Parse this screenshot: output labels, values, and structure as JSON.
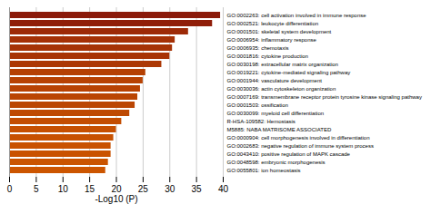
{
  "chart_data": {
    "type": "bar",
    "orientation": "horizontal",
    "categories": [
      "GO:0002263: cell activation involved in immune response",
      "GO:0002521: leukocyte differentiation",
      "GO:0001501: skeletal system development",
      "GO:0006954: inflammatory response",
      "GO:0006935: chemotaxis",
      "GO:0001816: cytokine production",
      "GO:0030198: extracellular matrix organization",
      "GO:0019221: cytokine-mediated signaling pathway",
      "GO:0001944: vasculature development",
      "GO:0030036: actin cytoskeleton organization",
      "GO:0007169: transmembrane receptor protein tyrosine kinase signaling pathway",
      "GO:0001503: ossification",
      "GO:0030099: myeloid cell differentiation",
      "R-HSA-109582: Hemostasis",
      "M5885: NABA MATRISOME ASSOCIATED",
      "GO:0000904: cell morphogenesis involved in differentiation",
      "GO:0002683: negative regulation of immune system process",
      "GO:0043410: positive regulation of MAPK cascade",
      "GO:0048598: embryonic morphogenesis",
      "GO:0055801: ion homeostasis"
    ],
    "values": [
      39.5,
      38.0,
      33.5,
      31.0,
      30.5,
      30.0,
      28.5,
      25.5,
      25.0,
      24.5,
      24.0,
      23.5,
      22.5,
      21.0,
      20.0,
      19.5,
      19.0,
      19.0,
      18.5,
      18.0
    ],
    "colors": [
      "#8b1a0a",
      "#901e09",
      "#9d2a07",
      "#a53106",
      "#a63306",
      "#a83406",
      "#ac3805",
      "#b54003",
      "#b74203",
      "#b84303",
      "#ba4503",
      "#bb4603",
      "#be4902",
      "#c34d01",
      "#c65001",
      "#c75101",
      "#c95200",
      "#c95200",
      "#ca5400",
      "#cc5500"
    ],
    "xlabel": "-Log10 (P)",
    "xlim": [
      0,
      40
    ],
    "xticks": [
      0,
      5,
      10,
      15,
      20,
      25,
      30,
      35,
      40
    ],
    "grid": true
  }
}
